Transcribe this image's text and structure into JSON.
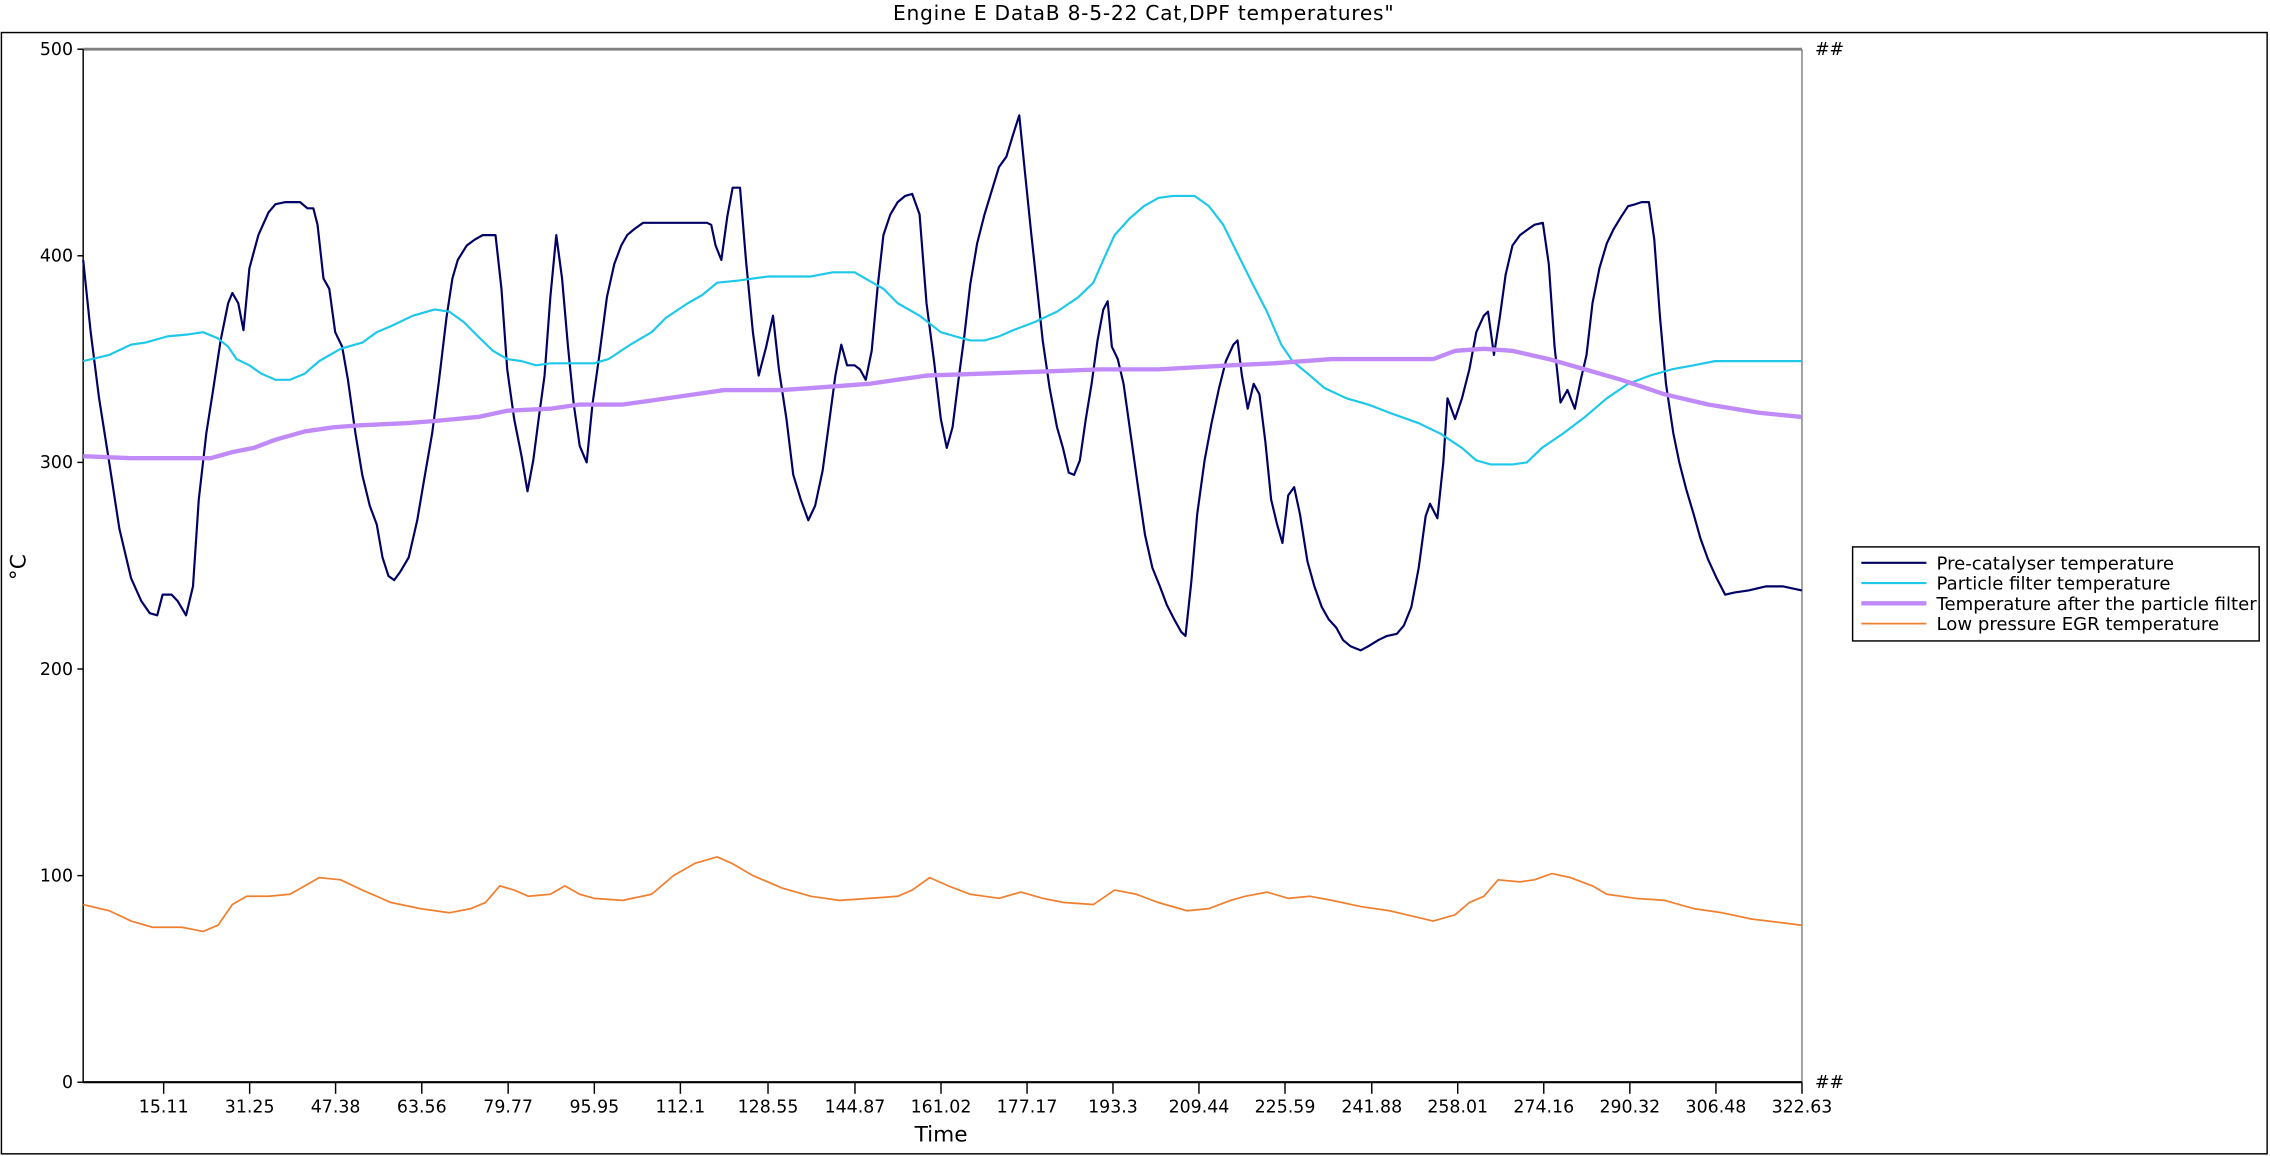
{
  "chart_data": {
    "type": "line",
    "title": "Engine E DataB 8-5-22 Cat,DPF temperatures\"",
    "xlabel": "Time",
    "ylabel": "°C",
    "xlim": [
      0,
      322.63
    ],
    "ylim": [
      0,
      500
    ],
    "yticks": [
      0,
      100,
      200,
      300,
      400,
      500
    ],
    "xticks": [
      15.11,
      31.25,
      47.38,
      63.56,
      79.77,
      95.95,
      112.1,
      128.55,
      144.87,
      161.02,
      177.17,
      193.3,
      209.44,
      225.59,
      241.88,
      258.01,
      274.16,
      290.32,
      306.48,
      322.63
    ],
    "right_axis_labels": [
      "##",
      "##"
    ],
    "grid": false,
    "legend_position": "right",
    "series": [
      {
        "name": "Pre-catalyser temperature",
        "color": "#000066",
        "width": 1.5,
        "t": [
          0,
          1.4,
          3.0,
          4.9,
          6.8,
          9.0,
          10.9,
          12.5,
          13.9,
          14.9,
          16.6,
          17.7,
          19.3,
          20.6,
          21.7,
          23.1,
          24.4,
          25.8,
          27.2,
          28.0,
          29.1,
          30.1,
          31.2,
          32.9,
          34.8,
          36.1,
          38.0,
          40.7,
          42.1,
          43.2,
          44.0,
          45.1,
          46.2,
          47.3,
          48.6,
          49.7,
          51.1,
          52.4,
          53.8,
          55.1,
          56.2,
          57.3,
          58.4,
          59.5,
          61.1,
          62.7,
          64.1,
          65.5,
          66.8,
          68.2,
          69.3,
          70.3,
          72.0,
          73.6,
          75.0,
          77.4,
          78.5,
          79.6,
          80.9,
          82.3,
          83.4,
          84.5,
          85.5,
          86.6,
          87.7,
          88.8,
          89.9,
          91.0,
          92.1,
          93.2,
          94.5,
          95.6,
          96.9,
          98.3,
          99.7,
          101.0,
          102.1,
          103.5,
          105.1,
          107.5,
          114.9,
          117.1,
          117.9,
          118.7,
          119.8,
          120.9,
          121.9,
          123.3,
          124.4,
          125.7,
          126.8,
          128.2,
          129.5,
          130.6,
          132.0,
          133.3,
          134.7,
          136.1,
          137.4,
          138.8,
          140.1,
          141.2,
          142.3,
          143.4,
          144.8,
          145.8,
          146.9,
          148.0,
          149.1,
          150.2,
          151.5,
          152.9,
          154.3,
          155.6,
          157.0,
          158.3,
          159.7,
          161.0,
          162.1,
          163.2,
          164.3,
          165.4,
          166.5,
          167.8,
          169.2,
          170.6,
          171.9,
          173.3,
          174.6,
          175.7,
          176.8,
          177.9,
          179.0,
          180.1,
          181.4,
          182.8,
          183.9,
          185.0,
          186.0,
          187.1,
          188.2,
          189.3,
          190.4,
          191.5,
          192.3,
          193.1,
          194.2,
          195.3,
          196.6,
          198.0,
          199.3,
          200.7,
          202.1,
          203.4,
          204.8,
          206.1,
          206.9,
          208.0,
          209.1,
          210.5,
          211.8,
          213.2,
          214.5,
          215.9,
          216.7,
          217.5,
          218.6,
          219.7,
          220.8,
          221.9,
          223.0,
          224.1,
          225.1,
          226.2,
          227.3,
          228.4,
          229.8,
          231.1,
          232.5,
          233.8,
          235.2,
          236.5,
          237.9,
          239.8,
          241.2,
          243.1,
          244.7,
          246.6,
          247.9,
          249.3,
          250.7,
          252.0,
          252.8,
          254.2,
          255.3,
          256.1,
          257.5,
          258.8,
          260.2,
          261.5,
          262.9,
          263.7,
          264.8,
          265.9,
          267.0,
          268.3,
          269.7,
          271.3,
          272.4,
          274.0,
          275.1,
          276.2,
          277.3,
          278.6,
          280.0,
          281.1,
          282.2,
          283.3,
          284.6,
          286.0,
          287.3,
          288.7,
          290.0,
          291.4,
          292.5,
          293.9,
          294.9,
          296.0,
          297.1,
          298.5,
          299.6,
          300.9,
          302.3,
          303.6,
          305.0,
          306.6,
          308.2,
          309.9,
          312.6,
          315.8,
          319.1,
          322.6
        ],
        "v": [
          398,
          363,
          331,
          300,
          268,
          244,
          233,
          227,
          226,
          236,
          236,
          233,
          226,
          240,
          282,
          314,
          335,
          359,
          377,
          382,
          377,
          364,
          394,
          410,
          421,
          425,
          426,
          426,
          423,
          423,
          415,
          389,
          384,
          363,
          356,
          340,
          314,
          294,
          279,
          270,
          254,
          245,
          243,
          247,
          254,
          272,
          293,
          314,
          340,
          370,
          389,
          398,
          405,
          408,
          410,
          410,
          384,
          345,
          321,
          303,
          286,
          301,
          321,
          342,
          380,
          410,
          389,
          356,
          328,
          308,
          300,
          328,
          352,
          380,
          396,
          405,
          410,
          413,
          416,
          416,
          416,
          416,
          415,
          405,
          398,
          419,
          433,
          433,
          398,
          363,
          342,
          356,
          371,
          345,
          321,
          294,
          282,
          272,
          279,
          296,
          321,
          342,
          357,
          347,
          347,
          345,
          340,
          354,
          384,
          410,
          420,
          426,
          429,
          430,
          420,
          377,
          349,
          321,
          307,
          317,
          340,
          361,
          386,
          406,
          420,
          432,
          443,
          448,
          459,
          468,
          440,
          412,
          386,
          359,
          336,
          317,
          307,
          295,
          294,
          301,
          321,
          338,
          359,
          374,
          378,
          356,
          350,
          338,
          314,
          288,
          265,
          249,
          240,
          231,
          224,
          218,
          216,
          242,
          275,
          301,
          319,
          336,
          349,
          357,
          359,
          342,
          326,
          338,
          333,
          310,
          282,
          270,
          261,
          284,
          288,
          275,
          252,
          240,
          230,
          224,
          220,
          214,
          211,
          209,
          211,
          214,
          216,
          217,
          221,
          230,
          249,
          274,
          280,
          273,
          300,
          331,
          321,
          331,
          345,
          363,
          371,
          373,
          352,
          370,
          391,
          405,
          410,
          413,
          415,
          416,
          396,
          356,
          329,
          335,
          326,
          340,
          352,
          377,
          394,
          406,
          413,
          419,
          424,
          425,
          426,
          426,
          408,
          370,
          338,
          314,
          300,
          287,
          275,
          263,
          253,
          244,
          236,
          237,
          238,
          240,
          240,
          238
        ]
      },
      {
        "name": "Particle filter temperature",
        "color": "#1ec8e8",
        "width": 1.5,
        "t": [
          0,
          4.9,
          9.0,
          11.7,
          15.8,
          19.8,
          22.5,
          25.3,
          27.2,
          28.8,
          31.2,
          33.4,
          36.1,
          38.8,
          41.6,
          44.3,
          48.3,
          52.4,
          55.1,
          57.8,
          61.9,
          66.0,
          68.7,
          71.4,
          74.1,
          76.9,
          79.6,
          82.3,
          85.0,
          87.7,
          93.2,
          95.9,
          98.6,
          102.7,
          106.7,
          109.4,
          113.5,
          116.2,
          119.0,
          123.0,
          128.5,
          136.6,
          140.7,
          144.8,
          147.5,
          150.2,
          152.9,
          157.0,
          161.0,
          163.7,
          166.5,
          169.2,
          171.9,
          174.6,
          178.7,
          182.8,
          186.8,
          189.6,
          191.5,
          193.6,
          196.4,
          199.1,
          201.8,
          204.5,
          208.6,
          211.3,
          214.0,
          216.7,
          219.4,
          222.2,
          224.9,
          227.0,
          230.3,
          233.0,
          237.1,
          241.2,
          245.2,
          250.7,
          254.7,
          258.8,
          261.5,
          264.2,
          268.3,
          271.0,
          273.8,
          277.8,
          281.9,
          286.0,
          290.0,
          294.1,
          298.2,
          302.3,
          306.3,
          310.4,
          322.6
        ],
        "v": [
          349,
          352,
          357,
          358,
          361,
          362,
          363,
          360,
          356,
          350,
          347,
          343,
          340,
          340,
          343,
          349,
          355,
          358,
          363,
          366,
          371,
          374,
          373,
          368,
          361,
          354,
          350,
          349,
          347,
          348,
          348,
          348,
          350,
          357,
          363,
          370,
          377,
          381,
          387,
          388,
          390,
          390,
          392,
          392,
          388,
          384,
          377,
          371,
          363,
          361,
          359,
          359,
          361,
          364,
          368,
          373,
          380,
          387,
          398,
          410,
          418,
          424,
          428,
          429,
          429,
          424,
          415,
          401,
          387,
          373,
          357,
          349,
          342,
          336,
          331,
          328,
          324,
          319,
          314,
          307,
          301,
          299,
          299,
          300,
          307,
          314,
          322,
          331,
          338,
          342,
          345,
          347,
          349,
          349,
          349
        ]
      },
      {
        "name": "Temperature after the particle filter",
        "color": "#c08af8",
        "width": 3,
        "t": [
          0,
          9.0,
          23.9,
          28.0,
          32.0,
          36.1,
          41.6,
          47.0,
          52.4,
          60.6,
          66.0,
          74.1,
          79.6,
          87.7,
          93.2,
          101.3,
          106.7,
          114.9,
          120.3,
          131.2,
          136.6,
          147.5,
          158.3,
          169.2,
          180.1,
          190.9,
          201.8,
          215.4,
          223.5,
          234.4,
          242.5,
          253.4,
          257.5,
          262.9,
          268.3,
          275.1,
          281.9,
          288.7,
          296.8,
          305.0,
          314.5,
          322.6
        ],
        "v": [
          303,
          302,
          302,
          305,
          307,
          311,
          315,
          317,
          318,
          319,
          320,
          322,
          325,
          326,
          328,
          328,
          330,
          333,
          335,
          335,
          336,
          338,
          342,
          343,
          344,
          345,
          345,
          347,
          348,
          350,
          350,
          350,
          354,
          355,
          354,
          350,
          345,
          340,
          333,
          328,
          324,
          322
        ]
      },
      {
        "name": "Low pressure EGR temperature",
        "color": "#f08030",
        "width": 1.2,
        "t": [
          0,
          4.9,
          9.0,
          13.0,
          18.5,
          22.5,
          25.3,
          28.0,
          30.7,
          34.8,
          38.8,
          41.6,
          44.3,
          48.3,
          52.4,
          57.8,
          63.3,
          68.7,
          72.8,
          75.5,
          78.2,
          80.9,
          83.6,
          87.7,
          90.4,
          93.2,
          95.9,
          101.3,
          106.7,
          110.8,
          114.9,
          119.0,
          121.7,
          125.7,
          131.2,
          136.6,
          142.0,
          147.5,
          152.9,
          155.6,
          158.9,
          162.4,
          166.5,
          171.9,
          176.0,
          180.1,
          184.1,
          189.6,
          193.6,
          197.7,
          201.8,
          207.2,
          211.3,
          215.4,
          218.1,
          222.2,
          226.2,
          230.3,
          234.4,
          239.8,
          245.2,
          253.4,
          257.5,
          260.2,
          262.9,
          265.6,
          269.7,
          272.4,
          275.7,
          279.2,
          283.3,
          286.0,
          291.4,
          296.8,
          302.3,
          307.7,
          313.1,
          322.6
        ],
        "v": [
          86,
          83,
          78,
          75,
          75,
          73,
          76,
          86,
          90,
          90,
          91,
          95,
          99,
          98,
          93,
          87,
          84,
          82,
          84,
          87,
          95,
          93,
          90,
          91,
          95,
          91,
          89,
          88,
          91,
          100,
          106,
          109,
          106,
          100,
          94,
          90,
          88,
          89,
          90,
          93,
          99,
          95,
          91,
          89,
          92,
          89,
          87,
          86,
          93,
          91,
          87,
          83,
          84,
          88,
          90,
          92,
          89,
          90,
          88,
          85,
          83,
          78,
          81,
          87,
          90,
          98,
          97,
          98,
          101,
          99,
          95,
          91,
          89,
          88,
          84,
          82,
          79,
          76
        ]
      }
    ]
  }
}
